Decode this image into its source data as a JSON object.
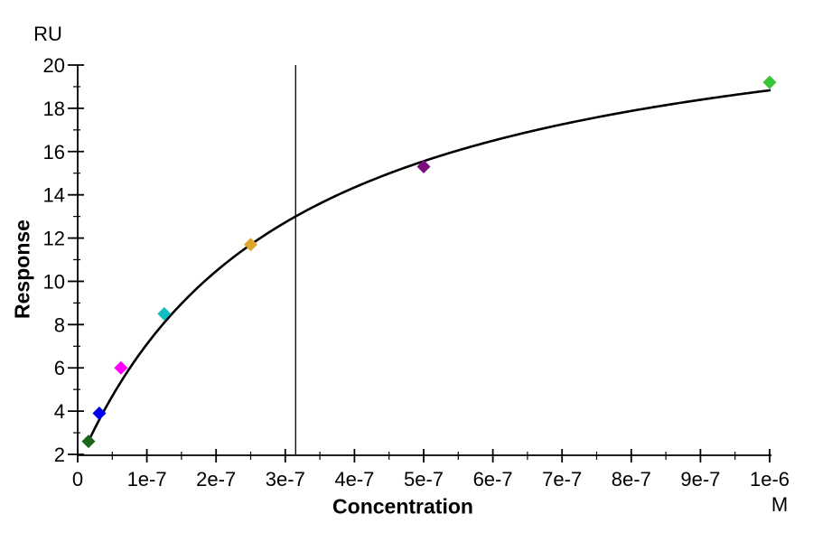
{
  "labels": {
    "y_unit": "RU",
    "y_axis_title": "Response",
    "x_axis_title": "Concentration",
    "x_unit": "M"
  },
  "chart_data": {
    "type": "scatter",
    "title": "",
    "xlabel": "Concentration",
    "x_unit": "M",
    "ylabel": "Response",
    "y_unit": "RU",
    "xlim": [
      0,
      1e-06
    ],
    "ylim": [
      2,
      20
    ],
    "grid": false,
    "legend": "none",
    "x_ticks": {
      "values": [
        0,
        1e-07,
        2e-07,
        3e-07,
        4e-07,
        5e-07,
        6e-07,
        7e-07,
        8e-07,
        9e-07,
        1e-06
      ],
      "labels": [
        "0",
        "1e-7",
        "2e-7",
        "3e-7",
        "4e-7",
        "5e-7",
        "6e-7",
        "7e-7",
        "8e-7",
        "9e-7",
        "1e-6"
      ],
      "minor_step": 5e-08
    },
    "y_ticks": {
      "values": [
        2,
        4,
        6,
        8,
        10,
        12,
        14,
        16,
        18,
        20
      ],
      "labels": [
        "2",
        "4",
        "6",
        "8",
        "10",
        "12",
        "14",
        "16",
        "18",
        "20"
      ],
      "minor_step": 1
    },
    "points": [
      {
        "concentration": 1.5625e-08,
        "response": 2.6,
        "color": "#1a661a",
        "marker": "diamond"
      },
      {
        "concentration": 3.125e-08,
        "response": 3.9,
        "color": "#0000ee",
        "marker": "diamond"
      },
      {
        "concentration": 6.25e-08,
        "response": 6.0,
        "color": "#ff00ff",
        "marker": "diamond"
      },
      {
        "concentration": 1.25e-07,
        "response": 8.5,
        "color": "#10bfc0",
        "marker": "diamond"
      },
      {
        "concentration": 2.5e-07,
        "response": 11.7,
        "color": "#dba629",
        "marker": "diamond"
      },
      {
        "concentration": 5e-07,
        "response": 15.3,
        "color": "#7d0e7d",
        "marker": "diamond"
      },
      {
        "concentration": 1e-06,
        "response": 19.2,
        "color": "#35c535",
        "marker": "diamond"
      }
    ],
    "fit_curve": {
      "model": "response = rmax * c / (kd + c) + offset",
      "rmax": 22.6,
      "kd": 3.04e-07,
      "offset": 1.5,
      "c_start": 1.4e-08,
      "c_end": 1e-06,
      "color": "#000000"
    },
    "kd_marker": {
      "x": 3.15e-07,
      "style": "vertical-line",
      "color": "#000000"
    }
  }
}
